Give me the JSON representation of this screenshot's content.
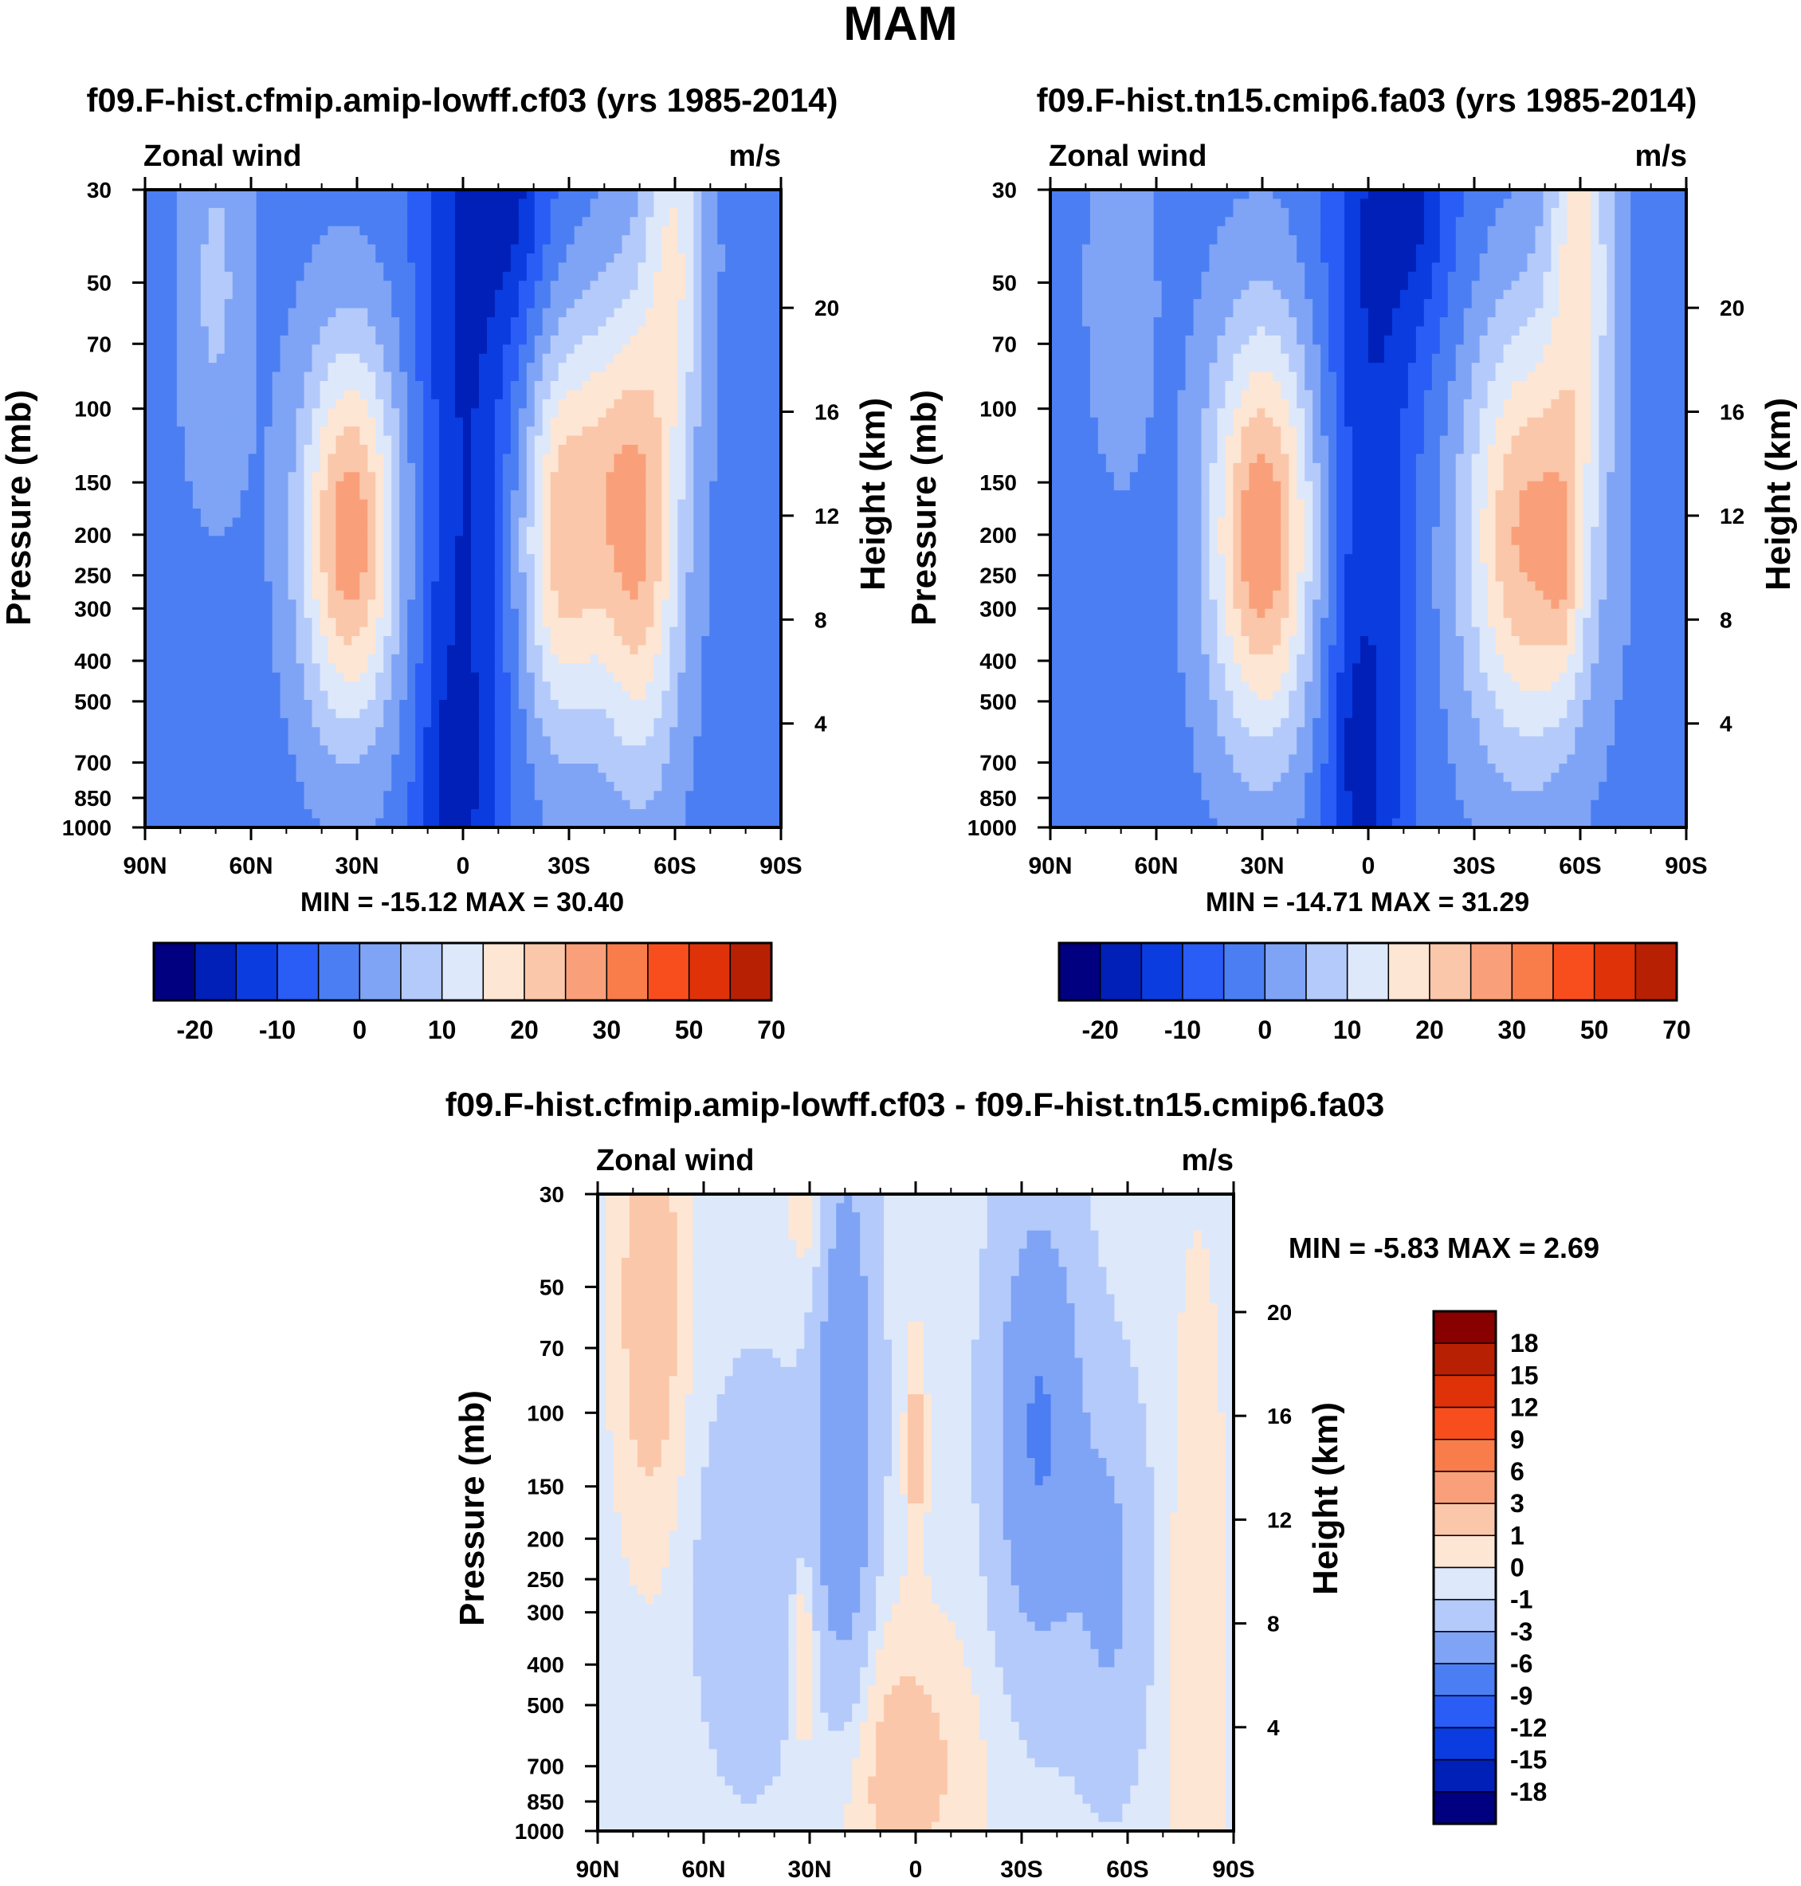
{
  "page_title": "MAM",
  "colors": {
    "abs": [
      "#000080",
      "#0020b8",
      "#0a3ce0",
      "#2a5cf6",
      "#4b7ef2",
      "#7fa4f6",
      "#b4cafa",
      "#dde8fb",
      "#fde6d4",
      "#fbc7aa",
      "#f9a07a",
      "#f97c4b",
      "#f84e1e",
      "#e03208",
      "#b82004",
      "#880000"
    ],
    "diff": [
      "#000080",
      "#0020b8",
      "#0a3ce0",
      "#2a5cf6",
      "#4b7ef2",
      "#7fa4f6",
      "#b4cafa",
      "#dde8fb",
      "#fde6d4",
      "#fbc7aa",
      "#f9a07a",
      "#f97c4b",
      "#f84e1e",
      "#e03208",
      "#b82004",
      "#880000"
    ]
  },
  "chart_data": [
    {
      "type": "contour",
      "id": "panel1",
      "title": "f09.F-hist.cfmip.amip-lowff.cf03 (yrs 1985-2014)",
      "left_label": "Zonal wind",
      "right_label": "m/s",
      "ylabel": "Pressure (mb)",
      "ylabel_right": "Height (km)",
      "xticks": [
        "90N",
        "60N",
        "30N",
        "0",
        "30S",
        "60S",
        "90S"
      ],
      "xvals": [
        90,
        60,
        30,
        0,
        -30,
        -60,
        -90
      ],
      "yticks": [
        "30",
        "50",
        "70",
        "100",
        "150",
        "200",
        "250",
        "300",
        "400",
        "500",
        "700",
        "850",
        "1000"
      ],
      "yvals": [
        30,
        50,
        70,
        100,
        150,
        200,
        250,
        300,
        400,
        500,
        700,
        850,
        1000
      ],
      "right_ticks": [
        "20",
        "16",
        "12",
        "8",
        "4"
      ],
      "right_vals": [
        20,
        16,
        12,
        8,
        4
      ],
      "min_max": "MIN = -15.12  MAX =  30.40",
      "levels": [
        -25,
        -20,
        -15,
        -10,
        -5,
        0,
        5,
        10,
        15,
        20,
        25,
        30,
        40,
        50,
        60,
        70
      ],
      "colorbar_labels": [
        "-20",
        "-10",
        "0",
        "10",
        "20",
        "30",
        "50",
        "70"
      ],
      "features": [
        {
          "lat": 32,
          "p": 200,
          "amp": 30.4,
          "wlat": 14,
          "wlnp": 1.05
        },
        {
          "lat": -28,
          "p": 200,
          "amp": 24,
          "wlat": 12,
          "wlnp": 1.1
        },
        {
          "lat": -50,
          "p": 220,
          "amp": 24,
          "wlat": 12,
          "wlnp": 1.25
        },
        {
          "lat": -60,
          "p": 40,
          "amp": 16,
          "wlat": 9,
          "wlnp": 1.1
        },
        {
          "lat": -42,
          "p": 120,
          "amp": 8,
          "wlat": 12,
          "wlnp": 1.0
        },
        {
          "lat": 70,
          "p": 50,
          "amp": 8,
          "wlat": 10,
          "wlnp": 1.2
        },
        {
          "lat": 0,
          "p": 500,
          "amp": -14,
          "wlat": 13,
          "wlnp": 3.0
        },
        {
          "lat": -8,
          "p": 30,
          "amp": -10,
          "wlat": 18,
          "wlnp": 1.2
        },
        {
          "lat": -15,
          "p": 30,
          "amp": -5,
          "wlat": 8,
          "wlnp": 0.6
        },
        {
          "lat": 5,
          "p": 780,
          "amp": -4,
          "wlat": 6,
          "wlnp": 0.5
        }
      ]
    },
    {
      "type": "contour",
      "id": "panel2",
      "title": "f09.F-hist.tn15.cmip6.fa03 (yrs 1985-2014)",
      "left_label": "Zonal wind",
      "right_label": "m/s",
      "ylabel": "Pressure (mb)",
      "ylabel_right": "Height (km)",
      "xticks": [
        "90N",
        "60N",
        "30N",
        "0",
        "30S",
        "60S",
        "90S"
      ],
      "xvals": [
        90,
        60,
        30,
        0,
        -30,
        -60,
        -90
      ],
      "yticks": [
        "30",
        "50",
        "70",
        "100",
        "150",
        "200",
        "250",
        "300",
        "400",
        "500",
        "700",
        "850",
        "1000"
      ],
      "yvals": [
        30,
        50,
        70,
        100,
        150,
        200,
        250,
        300,
        400,
        500,
        700,
        850,
        1000
      ],
      "right_ticks": [
        "20",
        "16",
        "12",
        "8",
        "4"
      ],
      "right_vals": [
        20,
        16,
        12,
        8,
        4
      ],
      "min_max": "MIN = -14.71  MAX =  31.29",
      "levels": [
        -25,
        -20,
        -15,
        -10,
        -5,
        0,
        5,
        10,
        15,
        20,
        25,
        30,
        40,
        50,
        60,
        70
      ],
      "colorbar_labels": [
        "-20",
        "-10",
        "0",
        "10",
        "20",
        "30",
        "50",
        "70"
      ],
      "features": [
        {
          "lat": 30,
          "p": 200,
          "amp": 31.3,
          "wlat": 15,
          "wlnp": 1.15
        },
        {
          "lat": -45,
          "p": 200,
          "amp": 28,
          "wlat": 18,
          "wlnp": 1.2
        },
        {
          "lat": -55,
          "p": 250,
          "amp": 8,
          "wlat": 5,
          "wlnp": 0.6
        },
        {
          "lat": -60,
          "p": 40,
          "amp": 18,
          "wlat": 9,
          "wlnp": 1.2
        },
        {
          "lat": 70,
          "p": 50,
          "amp": 7,
          "wlat": 9,
          "wlnp": 1.0
        },
        {
          "lat": 0,
          "p": 500,
          "amp": -13,
          "wlat": 12,
          "wlnp": 3.0
        },
        {
          "lat": -8,
          "p": 30,
          "amp": -10,
          "wlat": 17,
          "wlnp": 1.2
        },
        {
          "lat": -15,
          "p": 30,
          "amp": -5,
          "wlat": 8,
          "wlnp": 0.6
        },
        {
          "lat": 5,
          "p": 650,
          "amp": -4,
          "wlat": 6,
          "wlnp": 0.6
        }
      ]
    },
    {
      "type": "contour",
      "id": "panel3",
      "title": "f09.F-hist.cfmip.amip-lowff.cf03 - f09.F-hist.tn15.cmip6.fa03",
      "left_label": "Zonal wind",
      "right_label": "m/s",
      "ylabel": "Pressure (mb)",
      "ylabel_right": "Height (km)",
      "xticks": [
        "90N",
        "60N",
        "30N",
        "0",
        "30S",
        "60S",
        "90S"
      ],
      "xvals": [
        90,
        60,
        30,
        0,
        -30,
        -60,
        -90
      ],
      "yticks": [
        "30",
        "50",
        "70",
        "100",
        "150",
        "200",
        "250",
        "300",
        "400",
        "500",
        "700",
        "850",
        "1000"
      ],
      "yvals": [
        30,
        50,
        70,
        100,
        150,
        200,
        250,
        300,
        400,
        500,
        700,
        850,
        1000
      ],
      "right_ticks": [
        "20",
        "16",
        "12",
        "8",
        "4"
      ],
      "right_vals": [
        20,
        16,
        12,
        8,
        4
      ],
      "min_max": "MIN =  -5.83  MAX =    2.69",
      "levels": [
        -21,
        -18,
        -15,
        -12,
        -9,
        -6,
        -3,
        -1,
        0,
        1,
        3,
        6,
        9,
        12,
        15,
        18,
        21
      ],
      "colorbar_labels": [
        "18",
        "15",
        "12",
        "9",
        "6",
        "3",
        "1",
        "0",
        "-1",
        "-3",
        "-6",
        "-9",
        "-12",
        "-15",
        "-18"
      ],
      "features": [
        {
          "lat": 75,
          "p": 55,
          "amp": 2.6,
          "wlat": 10,
          "wlnp": 1.3
        },
        {
          "lat": 30,
          "p": 30,
          "amp": 1.5,
          "wlat": 6,
          "wlnp": 0.6
        },
        {
          "lat": 0,
          "p": 120,
          "amp": 2.2,
          "wlat": 3,
          "wlnp": 0.6
        },
        {
          "lat": 32,
          "p": 350,
          "amp": 2.5,
          "wlat": 4,
          "wlnp": 0.5
        },
        {
          "lat": 5,
          "p": 700,
          "amp": 2.2,
          "wlat": 22,
          "wlnp": 0.8
        },
        {
          "lat": -80,
          "p": 500,
          "amp": 1.5,
          "wlat": 8,
          "wlnp": 2.5
        },
        {
          "lat": 20,
          "p": 110,
          "amp": -5.5,
          "wlat": 8,
          "wlnp": 1.5
        },
        {
          "lat": -35,
          "p": 110,
          "amp": -5.8,
          "wlat": 12,
          "wlnp": 1.2
        },
        {
          "lat": -55,
          "p": 250,
          "amp": -3,
          "wlat": 10,
          "wlnp": 1.0
        },
        {
          "lat": 45,
          "p": 250,
          "amp": -2.5,
          "wlat": 15,
          "wlnp": 1.0
        }
      ],
      "base": -0.5
    }
  ]
}
